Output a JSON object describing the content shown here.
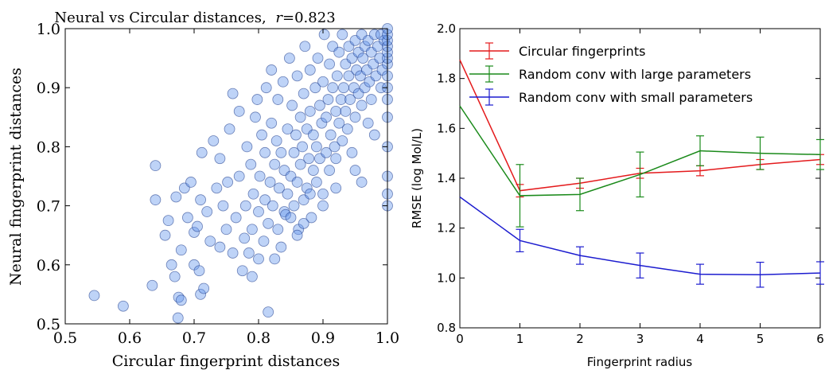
{
  "chart_data": [
    {
      "type": "scatter",
      "title": "Neural vs Circular distances,",
      "title_stat": {
        "symbol": "r",
        "equals": "=",
        "value": "0.823"
      },
      "xlabel": "Circular fingerprint distances",
      "ylabel": "Neural fingerprint distances",
      "xlim": [
        0.5,
        1.0
      ],
      "ylim": [
        0.5,
        1.0
      ],
      "xticks": [
        "0.5",
        "0.6",
        "0.7",
        "0.8",
        "0.9",
        "1.0"
      ],
      "yticks": [
        "0.5",
        "0.6",
        "0.7",
        "0.8",
        "0.9",
        "1.0"
      ],
      "marker_color": "#6495ed",
      "marker_edge": "#1c3a8a",
      "grid": false,
      "points": [
        [
          0.545,
          0.548
        ],
        [
          0.59,
          0.53
        ],
        [
          0.635,
          0.565
        ],
        [
          0.64,
          0.71
        ],
        [
          0.64,
          0.768
        ],
        [
          0.655,
          0.65
        ],
        [
          0.66,
          0.675
        ],
        [
          0.665,
          0.6
        ],
        [
          0.67,
          0.58
        ],
        [
          0.672,
          0.715
        ],
        [
          0.675,
          0.51
        ],
        [
          0.676,
          0.545
        ],
        [
          0.68,
          0.54
        ],
        [
          0.68,
          0.625
        ],
        [
          0.685,
          0.73
        ],
        [
          0.69,
          0.68
        ],
        [
          0.695,
          0.74
        ],
        [
          0.7,
          0.6
        ],
        [
          0.7,
          0.655
        ],
        [
          0.705,
          0.665
        ],
        [
          0.708,
          0.59
        ],
        [
          0.71,
          0.55
        ],
        [
          0.71,
          0.71
        ],
        [
          0.712,
          0.79
        ],
        [
          0.715,
          0.56
        ],
        [
          0.72,
          0.69
        ],
        [
          0.725,
          0.64
        ],
        [
          0.73,
          0.81
        ],
        [
          0.735,
          0.73
        ],
        [
          0.74,
          0.63
        ],
        [
          0.74,
          0.78
        ],
        [
          0.745,
          0.7
        ],
        [
          0.75,
          0.66
        ],
        [
          0.752,
          0.74
        ],
        [
          0.755,
          0.83
        ],
        [
          0.76,
          0.62
        ],
        [
          0.76,
          0.89
        ],
        [
          0.765,
          0.68
        ],
        [
          0.77,
          0.75
        ],
        [
          0.77,
          0.86
        ],
        [
          0.775,
          0.59
        ],
        [
          0.778,
          0.645
        ],
        [
          0.78,
          0.7
        ],
        [
          0.782,
          0.8
        ],
        [
          0.785,
          0.62
        ],
        [
          0.788,
          0.77
        ],
        [
          0.79,
          0.58
        ],
        [
          0.79,
          0.66
        ],
        [
          0.792,
          0.72
        ],
        [
          0.795,
          0.85
        ],
        [
          0.798,
          0.88
        ],
        [
          0.8,
          0.61
        ],
        [
          0.8,
          0.69
        ],
        [
          0.802,
          0.75
        ],
        [
          0.805,
          0.82
        ],
        [
          0.808,
          0.64
        ],
        [
          0.81,
          0.71
        ],
        [
          0.81,
          0.79
        ],
        [
          0.812,
          0.9
        ],
        [
          0.815,
          0.52
        ],
        [
          0.815,
          0.67
        ],
        [
          0.818,
          0.74
        ],
        [
          0.82,
          0.84
        ],
        [
          0.82,
          0.93
        ],
        [
          0.822,
          0.7
        ],
        [
          0.825,
          0.61
        ],
        [
          0.825,
          0.77
        ],
        [
          0.828,
          0.81
        ],
        [
          0.83,
          0.66
        ],
        [
          0.83,
          0.88
        ],
        [
          0.832,
          0.73
        ],
        [
          0.835,
          0.63
        ],
        [
          0.835,
          0.79
        ],
        [
          0.838,
          0.91
        ],
        [
          0.84,
          0.69
        ],
        [
          0.84,
          0.76
        ],
        [
          0.842,
          0.685
        ],
        [
          0.845,
          0.72
        ],
        [
          0.845,
          0.83
        ],
        [
          0.848,
          0.95
        ],
        [
          0.85,
          0.68
        ],
        [
          0.85,
          0.75
        ],
        [
          0.852,
          0.87
        ],
        [
          0.855,
          0.7
        ],
        [
          0.855,
          0.79
        ],
        [
          0.858,
          0.82
        ],
        [
          0.86,
          0.74
        ],
        [
          0.86,
          0.92
        ],
        [
          0.862,
          0.66
        ],
        [
          0.865,
          0.77
        ],
        [
          0.865,
          0.85
        ],
        [
          0.868,
          0.8
        ],
        [
          0.87,
          0.71
        ],
        [
          0.87,
          0.89
        ],
        [
          0.872,
          0.97
        ],
        [
          0.875,
          0.73
        ],
        [
          0.875,
          0.83
        ],
        [
          0.878,
          0.78
        ],
        [
          0.88,
          0.86
        ],
        [
          0.88,
          0.93
        ],
        [
          0.882,
          0.68
        ],
        [
          0.885,
          0.76
        ],
        [
          0.885,
          0.82
        ],
        [
          0.888,
          0.9
        ],
        [
          0.89,
          0.74
        ],
        [
          0.89,
          0.8
        ],
        [
          0.892,
          0.95
        ],
        [
          0.895,
          0.78
        ],
        [
          0.895,
          0.87
        ],
        [
          0.898,
          0.84
        ],
        [
          0.9,
          0.72
        ],
        [
          0.9,
          0.91
        ],
        [
          0.902,
          0.99
        ],
        [
          0.905,
          0.79
        ],
        [
          0.905,
          0.85
        ],
        [
          0.908,
          0.88
        ],
        [
          0.91,
          0.76
        ],
        [
          0.91,
          0.94
        ],
        [
          0.912,
          0.82
        ],
        [
          0.915,
          0.9
        ],
        [
          0.915,
          0.97
        ],
        [
          0.918,
          0.8
        ],
        [
          0.92,
          0.86
        ],
        [
          0.92,
          0.78
        ],
        [
          0.922,
          0.92
        ],
        [
          0.925,
          0.84
        ],
        [
          0.925,
          0.96
        ],
        [
          0.928,
          0.88
        ],
        [
          0.93,
          0.81
        ],
        [
          0.93,
          0.99
        ],
        [
          0.932,
          0.9
        ],
        [
          0.935,
          0.86
        ],
        [
          0.935,
          0.94
        ],
        [
          0.938,
          0.83
        ],
        [
          0.94,
          0.92
        ],
        [
          0.94,
          0.97
        ],
        [
          0.942,
          0.88
        ],
        [
          0.945,
          0.95
        ],
        [
          0.945,
          0.79
        ],
        [
          0.948,
          0.9
        ],
        [
          0.95,
          0.98
        ],
        [
          0.95,
          0.85
        ],
        [
          0.952,
          0.93
        ],
        [
          0.955,
          0.89
        ],
        [
          0.955,
          0.96
        ],
        [
          0.958,
          0.92
        ],
        [
          0.96,
          0.99
        ],
        [
          0.96,
          0.87
        ],
        [
          0.962,
          0.95
        ],
        [
          0.965,
          0.9
        ],
        [
          0.965,
          0.97
        ],
        [
          0.968,
          0.93
        ],
        [
          0.97,
          0.84
        ],
        [
          0.97,
          0.98
        ],
        [
          0.972,
          0.91
        ],
        [
          0.975,
          0.96
        ],
        [
          0.975,
          0.88
        ],
        [
          0.978,
          0.94
        ],
        [
          0.98,
          0.99
        ],
        [
          0.98,
          0.82
        ],
        [
          0.982,
          0.92
        ],
        [
          0.985,
          0.97
        ],
        [
          0.988,
          0.95
        ],
        [
          0.99,
          0.9
        ],
        [
          0.99,
          0.99
        ],
        [
          0.992,
          0.93
        ],
        [
          0.995,
          0.98
        ],
        [
          1.0,
          0.7
        ],
        [
          1.0,
          0.72
        ],
        [
          1.0,
          0.75
        ],
        [
          1.0,
          0.8
        ],
        [
          1.0,
          0.85
        ],
        [
          1.0,
          0.88
        ],
        [
          1.0,
          0.9
        ],
        [
          1.0,
          0.92
        ],
        [
          1.0,
          0.94
        ],
        [
          1.0,
          0.95
        ],
        [
          1.0,
          0.96
        ],
        [
          1.0,
          0.97
        ],
        [
          1.0,
          0.98
        ],
        [
          1.0,
          0.99
        ],
        [
          1.0,
          1.0
        ],
        [
          0.96,
          0.74
        ],
        [
          0.92,
          0.73
        ],
        [
          0.88,
          0.72
        ],
        [
          0.95,
          0.76
        ],
        [
          0.9,
          0.7
        ],
        [
          0.87,
          0.67
        ],
        [
          0.86,
          0.65
        ]
      ]
    },
    {
      "type": "line",
      "xlabel": "Fingerprint radius",
      "ylabel": "RMSE (log Mol/L)",
      "xlim": [
        0,
        6
      ],
      "ylim": [
        0.8,
        2.0
      ],
      "xticks": [
        "0",
        "1",
        "2",
        "3",
        "4",
        "5",
        "6"
      ],
      "yticks": [
        "0.8",
        "1.0",
        "1.2",
        "1.4",
        "1.6",
        "1.8",
        "2.0"
      ],
      "legend_position": "top-right",
      "grid": false,
      "x": [
        0,
        1,
        2,
        3,
        4,
        5,
        6
      ],
      "series": [
        {
          "name": "Circular fingerprints",
          "color": "#e41a1c",
          "values": [
            1.875,
            1.35,
            1.38,
            1.42,
            1.43,
            1.455,
            1.475
          ],
          "errors": [
            0.0,
            0.025,
            0.02,
            0.02,
            0.02,
            0.02,
            0.02
          ]
        },
        {
          "name": "Random conv with large parameters",
          "color": "#1a8a1a",
          "values": [
            1.69,
            1.33,
            1.335,
            1.415,
            1.51,
            1.5,
            1.495
          ],
          "errors": [
            0.0,
            0.125,
            0.065,
            0.09,
            0.06,
            0.065,
            0.06
          ]
        },
        {
          "name": "Random conv with small parameters",
          "color": "#1c1ccf",
          "values": [
            1.325,
            1.15,
            1.09,
            1.05,
            1.015,
            1.013,
            1.02
          ],
          "errors": [
            0.0,
            0.045,
            0.035,
            0.05,
            0.04,
            0.05,
            0.045
          ]
        }
      ]
    }
  ]
}
